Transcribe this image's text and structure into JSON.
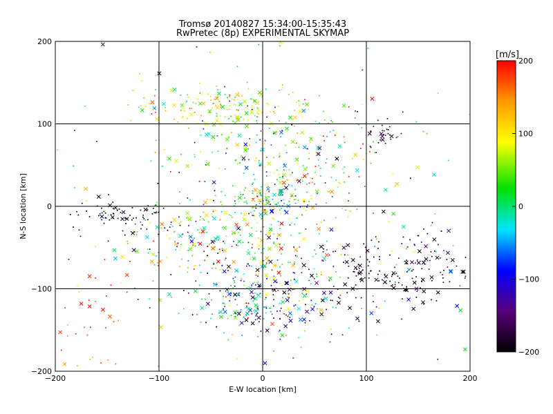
{
  "chart_data": {
    "type": "scatter",
    "title": "Tromsø 20140827 15:34:00-15:35:43",
    "subtitle": "RwPretec (8p) EXPERIMENTAL SKYMAP",
    "xlabel": "E-W location [km]",
    "ylabel": "N-S location [km]",
    "xlim": [
      -200,
      200
    ],
    "ylim": [
      -200,
      200
    ],
    "xticks": [
      -200,
      -100,
      0,
      100,
      200
    ],
    "yticks": [
      -200,
      -100,
      0,
      100,
      200
    ],
    "grid": true,
    "markers": [
      "dot",
      "cross"
    ],
    "colorbar": {
      "label": "[m/s]",
      "range": [
        -200,
        200
      ],
      "ticks": [
        200,
        100,
        0,
        -100,
        -200
      ],
      "colormap": "black-purple-blue-cyan-green-yellow-red"
    },
    "clusters": [
      {
        "cx": -40,
        "cy": 120,
        "sx": 40,
        "sy": 14,
        "n": 160,
        "vmean": 80,
        "vsd": 50
      },
      {
        "cx": 0,
        "cy": 40,
        "sx": 40,
        "sy": 40,
        "n": 220,
        "vmean": 30,
        "vsd": 70
      },
      {
        "cx": 5,
        "cy": 3,
        "sx": 14,
        "sy": 10,
        "n": 60,
        "vmean": -20,
        "vsd": 60
      },
      {
        "cx": -135,
        "cy": -10,
        "sx": 25,
        "sy": 10,
        "n": 70,
        "vmean": -190,
        "vsd": 12
      },
      {
        "cx": -70,
        "cy": -40,
        "sx": 40,
        "sy": 20,
        "n": 120,
        "vmean": 20,
        "vsd": 110
      },
      {
        "cx": 0,
        "cy": -70,
        "sx": 40,
        "sy": 40,
        "n": 220,
        "vmean": 30,
        "vsd": 110
      },
      {
        "cx": 0,
        "cy": -120,
        "sx": 40,
        "sy": 20,
        "n": 180,
        "vmean": -60,
        "vsd": 90
      },
      {
        "cx": 115,
        "cy": -80,
        "sx": 40,
        "sy": 25,
        "n": 150,
        "vmean": -190,
        "vsd": 15
      },
      {
        "cx": 115,
        "cy": 85,
        "sx": 10,
        "sy": 10,
        "n": 30,
        "vmean": -170,
        "vsd": 40
      },
      {
        "cx": 160,
        "cy": -65,
        "sx": 22,
        "sy": 18,
        "n": 40,
        "vmean": -120,
        "vsd": 70
      },
      {
        "cx": 60,
        "cy": 50,
        "sx": 40,
        "sy": 40,
        "n": 80,
        "vmean": 60,
        "vsd": 110
      },
      {
        "cx": -170,
        "cy": -150,
        "sx": 18,
        "sy": 35,
        "n": 40,
        "vmean": 180,
        "vsd": 30
      },
      {
        "cx": 0,
        "cy": 0,
        "sx": 130,
        "sy": 120,
        "n": 260,
        "vmean": 0,
        "vsd": 140
      }
    ]
  }
}
